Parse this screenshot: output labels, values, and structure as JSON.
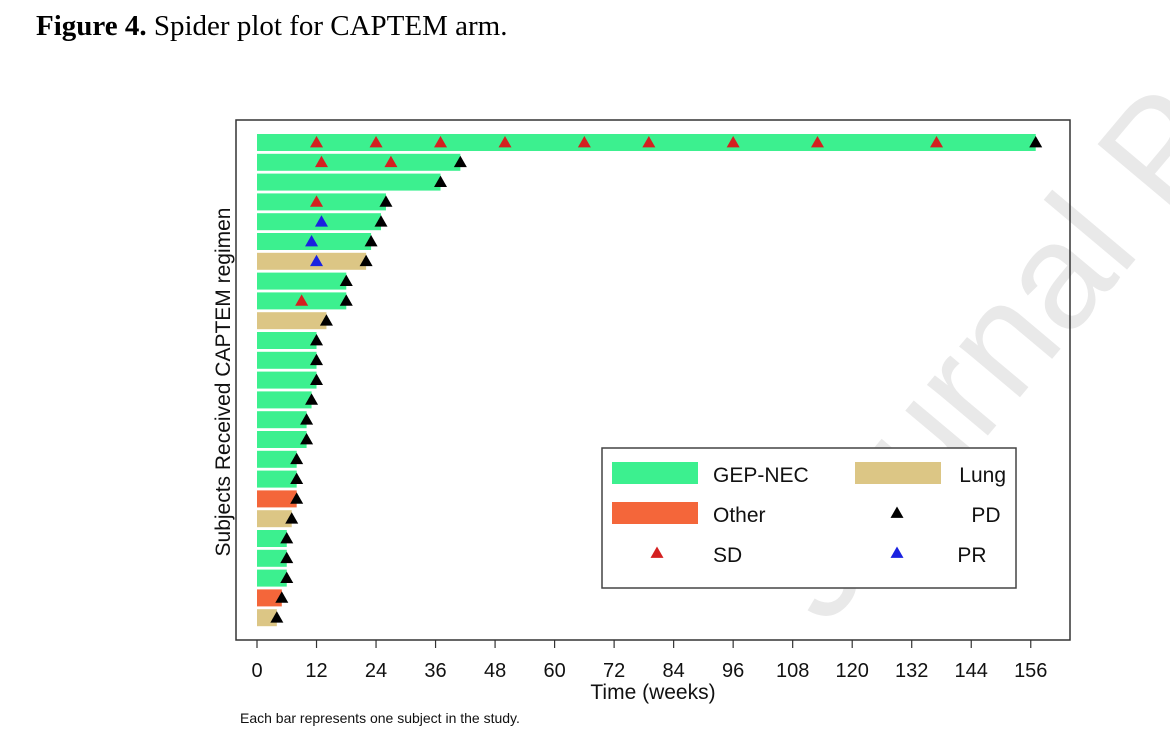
{
  "figure": {
    "label": "Figure 4.",
    "caption": "Spider plot for CAPTEM arm."
  },
  "watermark": "Journal Pre-proof",
  "footnote": "Each bar represents one subject in the study.",
  "chart_data": {
    "type": "bar",
    "orientation": "horizontal",
    "xlabel": "Time (weeks)",
    "ylabel": "Subjects Received CAPTEM regimen",
    "xlim": [
      0,
      160
    ],
    "xticks": [
      0,
      12,
      24,
      36,
      48,
      60,
      72,
      84,
      96,
      108,
      120,
      132,
      144,
      156
    ],
    "colors": {
      "GEP-NEC": "#3cf08f",
      "Lung": "#dcc685",
      "Other": "#f4663a",
      "SD": "#d42020",
      "PR": "#1a22e0",
      "PD": "#000000"
    },
    "legend": {
      "placement": "bottom-right",
      "bar_entries": [
        {
          "label": "GEP-NEC",
          "key": "GEP-NEC"
        },
        {
          "label": "Lung",
          "key": "Lung"
        },
        {
          "label": "Other",
          "key": "Other"
        }
      ],
      "marker_entries": [
        {
          "label": "PD",
          "key": "PD"
        },
        {
          "label": "SD",
          "key": "SD"
        },
        {
          "label": "PR",
          "key": "PR"
        }
      ]
    },
    "subjects": [
      {
        "type": "GEP-NEC",
        "duration": 157,
        "markers": [
          {
            "t": 12,
            "k": "SD"
          },
          {
            "t": 24,
            "k": "SD"
          },
          {
            "t": 37,
            "k": "SD"
          },
          {
            "t": 50,
            "k": "SD"
          },
          {
            "t": 66,
            "k": "SD"
          },
          {
            "t": 79,
            "k": "SD"
          },
          {
            "t": 96,
            "k": "SD"
          },
          {
            "t": 113,
            "k": "SD"
          },
          {
            "t": 137,
            "k": "SD"
          },
          {
            "t": 157,
            "k": "PD"
          }
        ]
      },
      {
        "type": "GEP-NEC",
        "duration": 41,
        "markers": [
          {
            "t": 13,
            "k": "SD"
          },
          {
            "t": 27,
            "k": "SD"
          },
          {
            "t": 41,
            "k": "PD"
          }
        ]
      },
      {
        "type": "GEP-NEC",
        "duration": 37,
        "markers": [
          {
            "t": 37,
            "k": "PD"
          }
        ]
      },
      {
        "type": "GEP-NEC",
        "duration": 26,
        "markers": [
          {
            "t": 12,
            "k": "SD"
          },
          {
            "t": 26,
            "k": "PD"
          }
        ]
      },
      {
        "type": "GEP-NEC",
        "duration": 25,
        "markers": [
          {
            "t": 13,
            "k": "PR"
          },
          {
            "t": 25,
            "k": "PD"
          }
        ]
      },
      {
        "type": "GEP-NEC",
        "duration": 23,
        "markers": [
          {
            "t": 11,
            "k": "PR"
          },
          {
            "t": 23,
            "k": "PD"
          }
        ]
      },
      {
        "type": "Lung",
        "duration": 22,
        "markers": [
          {
            "t": 12,
            "k": "PR"
          },
          {
            "t": 22,
            "k": "PD"
          }
        ]
      },
      {
        "type": "GEP-NEC",
        "duration": 18,
        "markers": [
          {
            "t": 18,
            "k": "PD"
          }
        ]
      },
      {
        "type": "GEP-NEC",
        "duration": 18,
        "markers": [
          {
            "t": 9,
            "k": "SD"
          },
          {
            "t": 18,
            "k": "PD"
          }
        ]
      },
      {
        "type": "Lung",
        "duration": 14,
        "markers": [
          {
            "t": 14,
            "k": "PD"
          }
        ]
      },
      {
        "type": "GEP-NEC",
        "duration": 12,
        "markers": [
          {
            "t": 12,
            "k": "PD"
          }
        ]
      },
      {
        "type": "GEP-NEC",
        "duration": 12,
        "markers": [
          {
            "t": 12,
            "k": "PD"
          }
        ]
      },
      {
        "type": "GEP-NEC",
        "duration": 12,
        "markers": [
          {
            "t": 12,
            "k": "PD"
          }
        ]
      },
      {
        "type": "GEP-NEC",
        "duration": 11,
        "markers": [
          {
            "t": 11,
            "k": "PD"
          }
        ]
      },
      {
        "type": "GEP-NEC",
        "duration": 10,
        "markers": [
          {
            "t": 10,
            "k": "PD"
          }
        ]
      },
      {
        "type": "GEP-NEC",
        "duration": 10,
        "markers": [
          {
            "t": 10,
            "k": "PD"
          }
        ]
      },
      {
        "type": "GEP-NEC",
        "duration": 8,
        "markers": [
          {
            "t": 8,
            "k": "PD"
          }
        ]
      },
      {
        "type": "GEP-NEC",
        "duration": 8,
        "markers": [
          {
            "t": 8,
            "k": "PD"
          }
        ]
      },
      {
        "type": "Other",
        "duration": 8,
        "markers": [
          {
            "t": 8,
            "k": "PD"
          }
        ]
      },
      {
        "type": "Lung",
        "duration": 7,
        "markers": [
          {
            "t": 7,
            "k": "PD"
          }
        ]
      },
      {
        "type": "GEP-NEC",
        "duration": 6,
        "markers": [
          {
            "t": 6,
            "k": "PD"
          }
        ]
      },
      {
        "type": "GEP-NEC",
        "duration": 6,
        "markers": [
          {
            "t": 6,
            "k": "PD"
          }
        ]
      },
      {
        "type": "GEP-NEC",
        "duration": 6,
        "markers": [
          {
            "t": 6,
            "k": "PD"
          }
        ]
      },
      {
        "type": "Other",
        "duration": 5,
        "markers": [
          {
            "t": 5,
            "k": "PD"
          }
        ]
      },
      {
        "type": "Lung",
        "duration": 4,
        "markers": [
          {
            "t": 4,
            "k": "PD"
          }
        ]
      }
    ]
  }
}
